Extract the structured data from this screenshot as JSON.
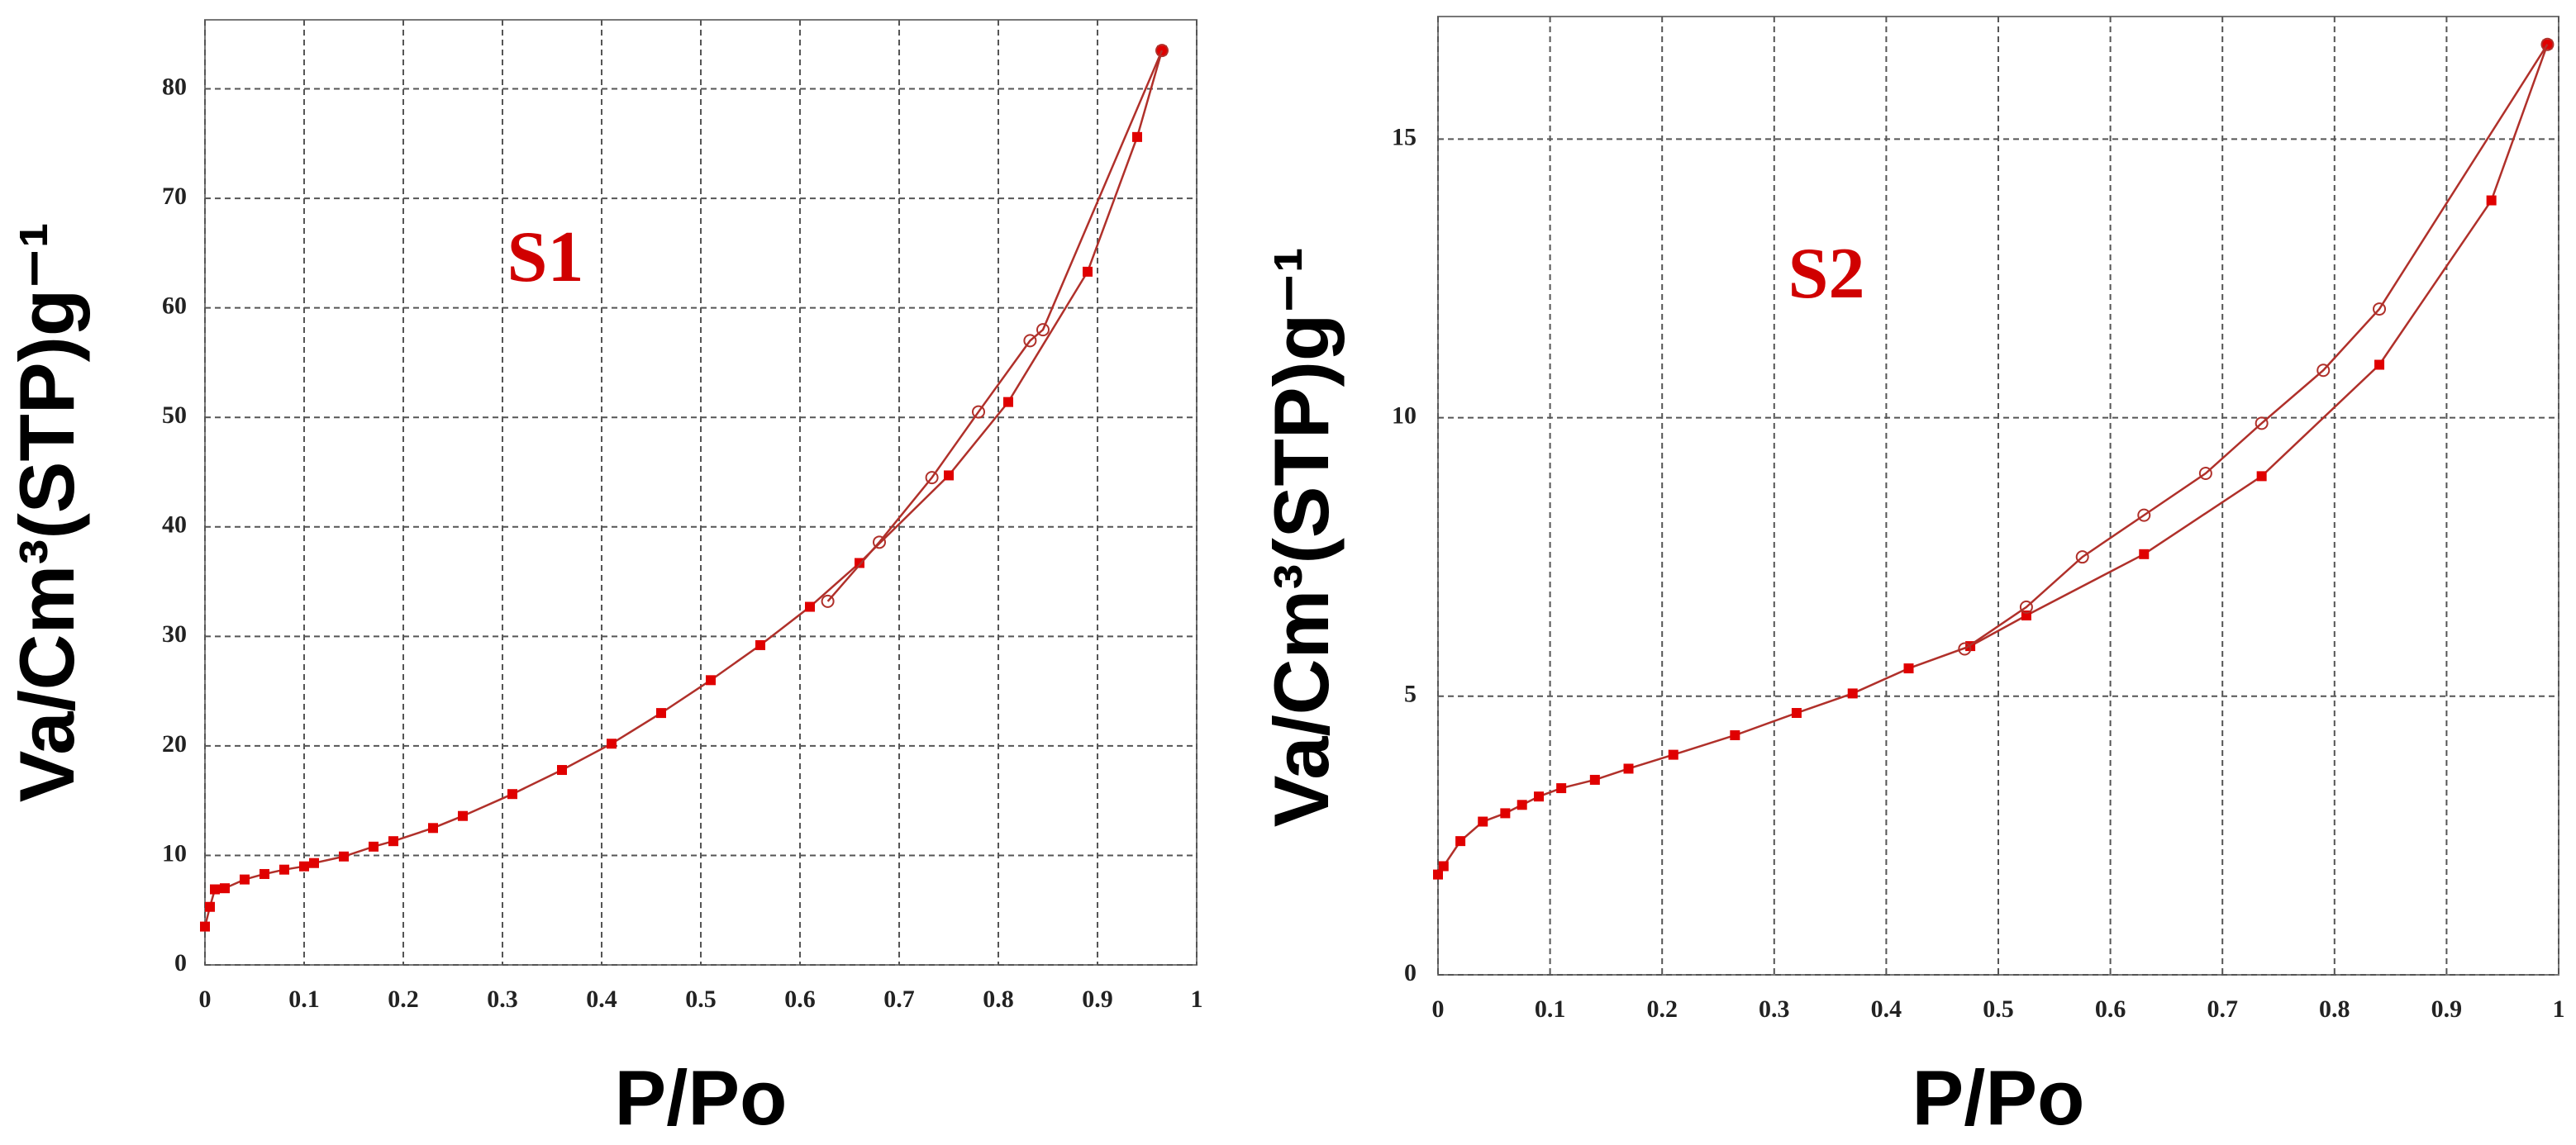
{
  "chart_data": [
    {
      "type": "line",
      "annotation": "S1",
      "xlabel": "P/Po",
      "ylabel": "Va/Cm³(STP)g⁻¹",
      "xlim": [
        0,
        1
      ],
      "xticks": [
        0,
        0.1,
        0.2,
        0.3,
        0.4,
        0.5,
        0.6,
        0.7,
        0.8,
        0.9,
        1
      ],
      "ylim": [
        0,
        86.3
      ],
      "yticks": [
        0,
        10,
        20,
        30,
        40,
        50,
        60,
        70,
        80
      ],
      "grid": true,
      "series": [
        {
          "marker": "square",
          "color": "#b0302a",
          "x": [
            0.0,
            0.005,
            0.01,
            0.02,
            0.04,
            0.06,
            0.08,
            0.1,
            0.11,
            0.14,
            0.17,
            0.19,
            0.23,
            0.26,
            0.31,
            0.36,
            0.41,
            0.46,
            0.51,
            0.56,
            0.61,
            0.66,
            0.75,
            0.81,
            0.89,
            0.94,
            0.965
          ],
          "values": [
            3.5,
            5.3,
            6.9,
            7.0,
            7.8,
            8.3,
            8.7,
            9.0,
            9.3,
            9.9,
            10.8,
            11.3,
            12.5,
            13.6,
            15.6,
            17.8,
            20.2,
            23.0,
            26.0,
            29.2,
            32.7,
            36.7,
            44.7,
            51.4,
            63.3,
            75.6,
            83.5
          ]
        },
        {
          "marker": "circle",
          "color": "#b0302a",
          "x": [
            0.965,
            0.845,
            0.832,
            0.78,
            0.733,
            0.68,
            0.628
          ],
          "values": [
            83.5,
            58.0,
            57.0,
            50.5,
            44.5,
            38.6,
            33.2
          ]
        }
      ]
    },
    {
      "type": "line",
      "annotation": "S2",
      "xlabel": "P/Po",
      "ylabel": "Va/Cm³(STP)g⁻¹",
      "xlim": [
        0,
        1
      ],
      "xticks": [
        0,
        0.1,
        0.2,
        0.3,
        0.4,
        0.5,
        0.6,
        0.7,
        0.8,
        0.9,
        1
      ],
      "ylim": [
        0,
        17.2
      ],
      "yticks": [
        0,
        5,
        10,
        15
      ],
      "grid": true,
      "series": [
        {
          "marker": "square",
          "color": "#b0302a",
          "x": [
            0.0,
            0.005,
            0.02,
            0.04,
            0.06,
            0.075,
            0.09,
            0.11,
            0.14,
            0.17,
            0.21,
            0.265,
            0.32,
            0.37,
            0.42,
            0.475,
            0.525,
            0.63,
            0.735,
            0.84,
            0.94,
            0.99
          ],
          "values": [
            1.8,
            1.95,
            2.4,
            2.75,
            2.9,
            3.05,
            3.2,
            3.35,
            3.5,
            3.7,
            3.95,
            4.3,
            4.7,
            5.05,
            5.5,
            5.9,
            6.45,
            7.55,
            8.95,
            10.95,
            13.9,
            16.7
          ]
        },
        {
          "marker": "circle",
          "color": "#b0302a",
          "x": [
            0.99,
            0.84,
            0.79,
            0.735,
            0.685,
            0.63,
            0.575,
            0.525,
            0.47
          ],
          "values": [
            16.7,
            11.95,
            10.85,
            9.9,
            9.0,
            8.25,
            7.5,
            6.6,
            5.85
          ]
        }
      ]
    }
  ]
}
